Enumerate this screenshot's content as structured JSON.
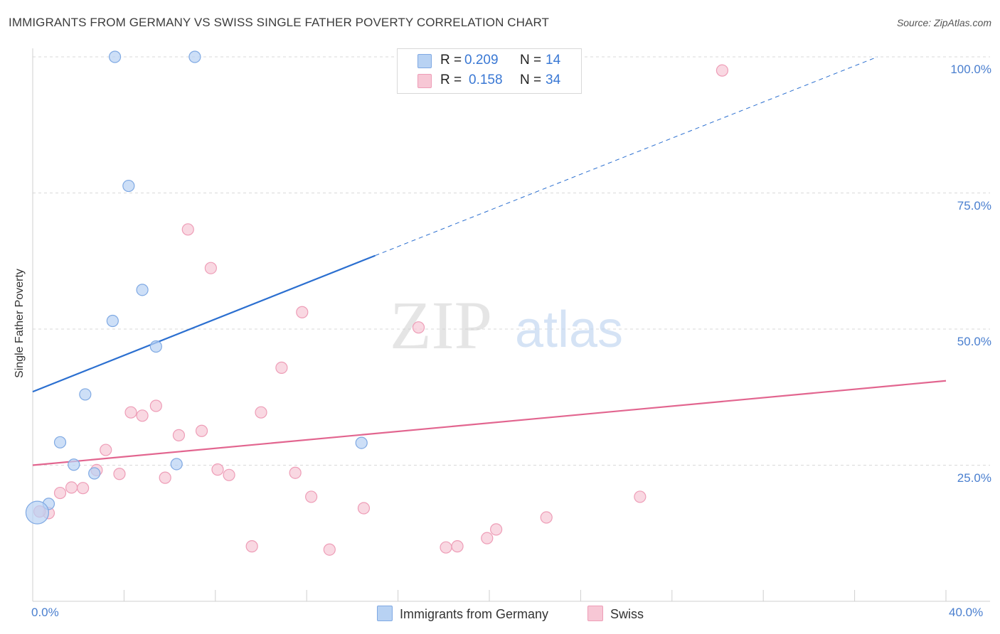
{
  "header": {
    "title": "IMMIGRANTS FROM GERMANY VS SWISS SINGLE FATHER POVERTY CORRELATION CHART",
    "source": "Source: ZipAtlas.com"
  },
  "watermark": {
    "zip": "ZIP",
    "atlas": "atlas"
  },
  "legend": {
    "r_label": "R =",
    "n_label": "N =",
    "series": [
      {
        "name": "Immigrants from Germany",
        "r": "0.209",
        "n": "14"
      },
      {
        "name": "Swiss",
        "r": "0.158",
        "n": "34"
      }
    ]
  },
  "colors": {
    "blue_fill": "#b8d2f3",
    "blue_stroke": "#7fa9e3",
    "blue_line": "#2b6fd0",
    "pink_fill": "#f7c7d5",
    "pink_stroke": "#ee9db7",
    "pink_line": "#e2658f",
    "grid": "#d9d9d9",
    "tick_text": "#4a7fcf"
  },
  "chart_data": {
    "type": "scatter",
    "title": "IMMIGRANTS FROM GERMANY VS SWISS SINGLE FATHER POVERTY CORRELATION CHART",
    "xlabel": "",
    "ylabel": "Single Father Poverty",
    "xlim": [
      0,
      40
    ],
    "ylim": [
      0,
      100
    ],
    "x_tick_labels": [
      "0.0%",
      "40.0%"
    ],
    "y_ticks": [
      25,
      50,
      75,
      100
    ],
    "y_tick_labels": [
      "25.0%",
      "50.0%",
      "75.0%",
      "100.0%"
    ],
    "grid": true,
    "series": [
      {
        "name": "Immigrants from Germany",
        "color": "blue",
        "points": [
          {
            "x": 3.6,
            "y": 100
          },
          {
            "x": 7.1,
            "y": 100
          },
          {
            "x": 4.2,
            "y": 76.3
          },
          {
            "x": 4.8,
            "y": 57.2
          },
          {
            "x": 3.5,
            "y": 51.5
          },
          {
            "x": 5.4,
            "y": 46.8
          },
          {
            "x": 2.3,
            "y": 38.0
          },
          {
            "x": 1.2,
            "y": 29.2
          },
          {
            "x": 1.8,
            "y": 25.1
          },
          {
            "x": 2.7,
            "y": 23.5
          },
          {
            "x": 6.3,
            "y": 25.2
          },
          {
            "x": 14.4,
            "y": 29.1
          },
          {
            "x": 0.7,
            "y": 17.9
          },
          {
            "x": 0.2,
            "y": 16.3,
            "large": true
          }
        ],
        "trend": {
          "x0": 0,
          "y0": 38.5,
          "x1": 15.0,
          "y1": 63.5,
          "dash_to_x": 37.0,
          "dash_to_y": 100
        }
      },
      {
        "name": "Swiss",
        "color": "pink",
        "points": [
          {
            "x": 30.2,
            "y": 97.5
          },
          {
            "x": 6.8,
            "y": 68.3
          },
          {
            "x": 7.8,
            "y": 61.2
          },
          {
            "x": 11.8,
            "y": 53.1
          },
          {
            "x": 16.9,
            "y": 50.3
          },
          {
            "x": 10.9,
            "y": 42.9
          },
          {
            "x": 5.4,
            "y": 35.9
          },
          {
            "x": 4.3,
            "y": 34.7
          },
          {
            "x": 4.8,
            "y": 34.1
          },
          {
            "x": 10.0,
            "y": 34.7
          },
          {
            "x": 6.4,
            "y": 30.5
          },
          {
            "x": 7.4,
            "y": 31.3
          },
          {
            "x": 3.2,
            "y": 27.8
          },
          {
            "x": 2.8,
            "y": 24.1
          },
          {
            "x": 3.8,
            "y": 23.4
          },
          {
            "x": 5.8,
            "y": 22.7
          },
          {
            "x": 8.1,
            "y": 24.2
          },
          {
            "x": 8.6,
            "y": 23.2
          },
          {
            "x": 11.5,
            "y": 23.6
          },
          {
            "x": 1.7,
            "y": 20.9
          },
          {
            "x": 2.2,
            "y": 20.8
          },
          {
            "x": 1.2,
            "y": 19.9
          },
          {
            "x": 12.2,
            "y": 19.2
          },
          {
            "x": 14.5,
            "y": 17.1
          },
          {
            "x": 0.7,
            "y": 16.2
          },
          {
            "x": 22.5,
            "y": 15.4
          },
          {
            "x": 26.6,
            "y": 19.2
          },
          {
            "x": 20.3,
            "y": 13.2
          },
          {
            "x": 19.9,
            "y": 11.6
          },
          {
            "x": 18.6,
            "y": 10.1
          },
          {
            "x": 18.1,
            "y": 9.9
          },
          {
            "x": 9.6,
            "y": 10.1
          },
          {
            "x": 13.0,
            "y": 9.5
          },
          {
            "x": 0.3,
            "y": 16.5
          }
        ],
        "trend": {
          "x0": 0,
          "y0": 25.0,
          "x1": 40,
          "y1": 40.5
        }
      }
    ]
  }
}
